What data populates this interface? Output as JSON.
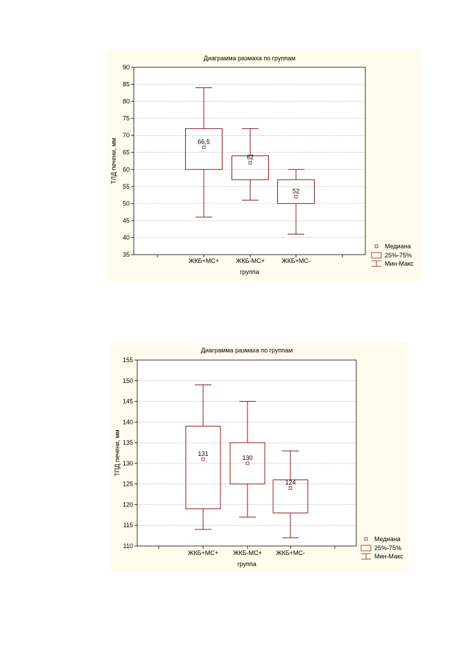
{
  "chart_data": [
    {
      "type": "box",
      "title": "Диаграмма размаха по группам",
      "xlabel": "группа",
      "ylabel": "ТЛД печени, мм",
      "ylim": [
        35,
        90
      ],
      "yticks": [
        35,
        40,
        45,
        50,
        55,
        60,
        65,
        70,
        75,
        80,
        85,
        90
      ],
      "grid": true,
      "legend_position": "bottom-right",
      "categories": [
        "ЖКБ+МС+",
        "ЖКБ-МС+",
        "ЖКБ+МС-"
      ],
      "boxes": [
        {
          "min": 46,
          "q1": 60,
          "median": 66.5,
          "q3": 72,
          "max": 84,
          "median_label": "66,5"
        },
        {
          "min": 51,
          "q1": 57,
          "median": 62,
          "q3": 64,
          "max": 72,
          "median_label": "62"
        },
        {
          "min": 41,
          "q1": 50,
          "median": 52,
          "q3": 57,
          "max": 60,
          "median_label": "52"
        }
      ],
      "legend": [
        "Медиана",
        "25%-75%",
        "Мин-Макс"
      ],
      "color": "#8b1a1a"
    },
    {
      "type": "box",
      "title": "Диаграмма размаха по группам",
      "xlabel": "группа",
      "ylabel": "ТПД печени, мм",
      "ylim": [
        110,
        155
      ],
      "yticks": [
        110,
        115,
        120,
        125,
        130,
        135,
        140,
        145,
        150,
        155
      ],
      "grid": true,
      "legend_position": "bottom-right",
      "categories": [
        "ЖКБ+МС+",
        "ЖКБ-МС+",
        "ЖКБ+МС-"
      ],
      "boxes": [
        {
          "min": 114,
          "q1": 119,
          "median": 131,
          "q3": 139,
          "max": 149,
          "median_label": "131"
        },
        {
          "min": 117,
          "q1": 125,
          "median": 130,
          "q3": 135,
          "max": 145,
          "median_label": "130"
        },
        {
          "min": 112,
          "q1": 118,
          "median": 124,
          "q3": 126,
          "max": 133,
          "median_label": "124"
        }
      ],
      "legend": [
        "Медиана",
        "25%-75%",
        "Мин-Макс"
      ],
      "color": "#8b1a1a"
    }
  ]
}
